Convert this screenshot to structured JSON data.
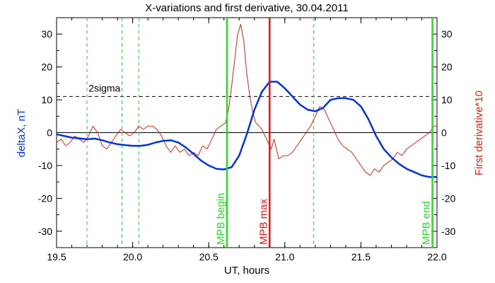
{
  "chart_data": {
    "type": "line",
    "title": "X-variations and first derivative, 30.04.2011",
    "xlabel": "UT, hours",
    "ylabel_left": "deltaX, nT",
    "ylabel_right": "First derivative*10",
    "xlim": [
      19.5,
      22.0
    ],
    "ylim": [
      -35,
      35
    ],
    "x_ticks": [
      "19.5",
      "20.0",
      "20.5",
      "21.0",
      "21.5",
      "22.0"
    ],
    "y_ticks": [
      "-30",
      "-20",
      "-10",
      "0",
      "10",
      "20",
      "30"
    ],
    "grid": false,
    "colors": {
      "deltaX": "#0033dd",
      "derivative": "#dd2211",
      "green_lines": "#22dd22",
      "red_line": "#ee1111",
      "left_label": "#0033dd",
      "right_label": "#dd2211"
    },
    "threshold": {
      "label": "2sigma",
      "value": 11
    },
    "zero_line": 0,
    "markers": [
      {
        "label": "MPB begin",
        "x": 20.62,
        "color": "#22dd22"
      },
      {
        "label": "MPB max",
        "x": 20.9,
        "color": "#ee1111"
      },
      {
        "label": "MPB end",
        "x": 21.97,
        "color": "#22dd22"
      }
    ],
    "dashed_lines": [
      19.7,
      19.93,
      20.04,
      21.19
    ],
    "series": [
      {
        "key": "deltaX",
        "x": [
          19.5,
          19.6,
          19.7,
          19.75,
          19.8,
          19.85,
          19.9,
          19.95,
          20.0,
          20.05,
          20.1,
          20.15,
          20.2,
          20.25,
          20.3,
          20.35,
          20.4,
          20.45,
          20.5,
          20.55,
          20.6,
          20.65,
          20.7,
          20.75,
          20.8,
          20.85,
          20.9,
          20.95,
          21.0,
          21.05,
          21.1,
          21.15,
          21.2,
          21.25,
          21.3,
          21.35,
          21.4,
          21.45,
          21.5,
          21.55,
          21.6,
          21.65,
          21.7,
          21.75,
          21.8,
          21.85,
          21.9,
          21.95,
          22.0
        ],
        "values": [
          -0.5,
          -1.5,
          -2,
          -1.8,
          -2.3,
          -3,
          -3.5,
          -3.8,
          -4,
          -4,
          -3.7,
          -3,
          -2.5,
          -2.3,
          -3,
          -4.5,
          -6.5,
          -8.5,
          -10,
          -11,
          -11.2,
          -10.5,
          -7,
          -0.5,
          7,
          12.5,
          15.5,
          15.5,
          13.5,
          11,
          8.5,
          7,
          6.5,
          7.5,
          10,
          10.5,
          10.5,
          10,
          8,
          4,
          -1,
          -5,
          -7.5,
          -9.5,
          -11,
          -12,
          -13,
          -13.5,
          -13.5
        ]
      },
      {
        "key": "derivative",
        "x": [
          19.5,
          19.53,
          19.56,
          19.59,
          19.62,
          19.65,
          19.68,
          19.71,
          19.74,
          19.77,
          19.8,
          19.83,
          19.86,
          19.89,
          19.92,
          19.95,
          19.98,
          20.01,
          20.04,
          20.07,
          20.1,
          20.13,
          20.16,
          20.19,
          20.22,
          20.25,
          20.28,
          20.31,
          20.34,
          20.37,
          20.4,
          20.43,
          20.46,
          20.49,
          20.52,
          20.55,
          20.58,
          20.61,
          20.63,
          20.65,
          20.67,
          20.69,
          20.71,
          20.73,
          20.75,
          20.77,
          20.79,
          20.81,
          20.83,
          20.85,
          20.87,
          20.89,
          20.91,
          20.93,
          20.96,
          20.99,
          21.02,
          21.05,
          21.08,
          21.11,
          21.14,
          21.17,
          21.2,
          21.23,
          21.26,
          21.29,
          21.32,
          21.35,
          21.38,
          21.41,
          21.44,
          21.47,
          21.5,
          21.53,
          21.56,
          21.59,
          21.62,
          21.65,
          21.68,
          21.71,
          21.74,
          21.77,
          21.8,
          21.83,
          21.86,
          21.89,
          21.92,
          21.95,
          21.98,
          22.0
        ],
        "values": [
          -3,
          -2,
          -4,
          -3,
          -1,
          -2,
          -3,
          -1,
          2,
          0,
          -4,
          -5,
          -3,
          -1,
          1,
          0,
          -1,
          0,
          2,
          1,
          2,
          2,
          1,
          -1,
          -4,
          -6,
          -4,
          -6,
          -5,
          -7,
          -6,
          -7,
          -4,
          -5,
          -2,
          1,
          2,
          3,
          7,
          14,
          22,
          30,
          33,
          28,
          18,
          11,
          6,
          3,
          2,
          1,
          -1,
          -3,
          -5,
          -2,
          -8,
          -7,
          -7,
          -6,
          -4,
          -2,
          0,
          2,
          5,
          8,
          7,
          4,
          1,
          -2,
          -4,
          -5,
          -6,
          -8,
          -10,
          -12,
          -13,
          -11,
          -12,
          -10,
          -9,
          -8,
          -6,
          -7,
          -5,
          -4,
          -3,
          -2,
          -1,
          0,
          2,
          2
        ]
      }
    ]
  }
}
